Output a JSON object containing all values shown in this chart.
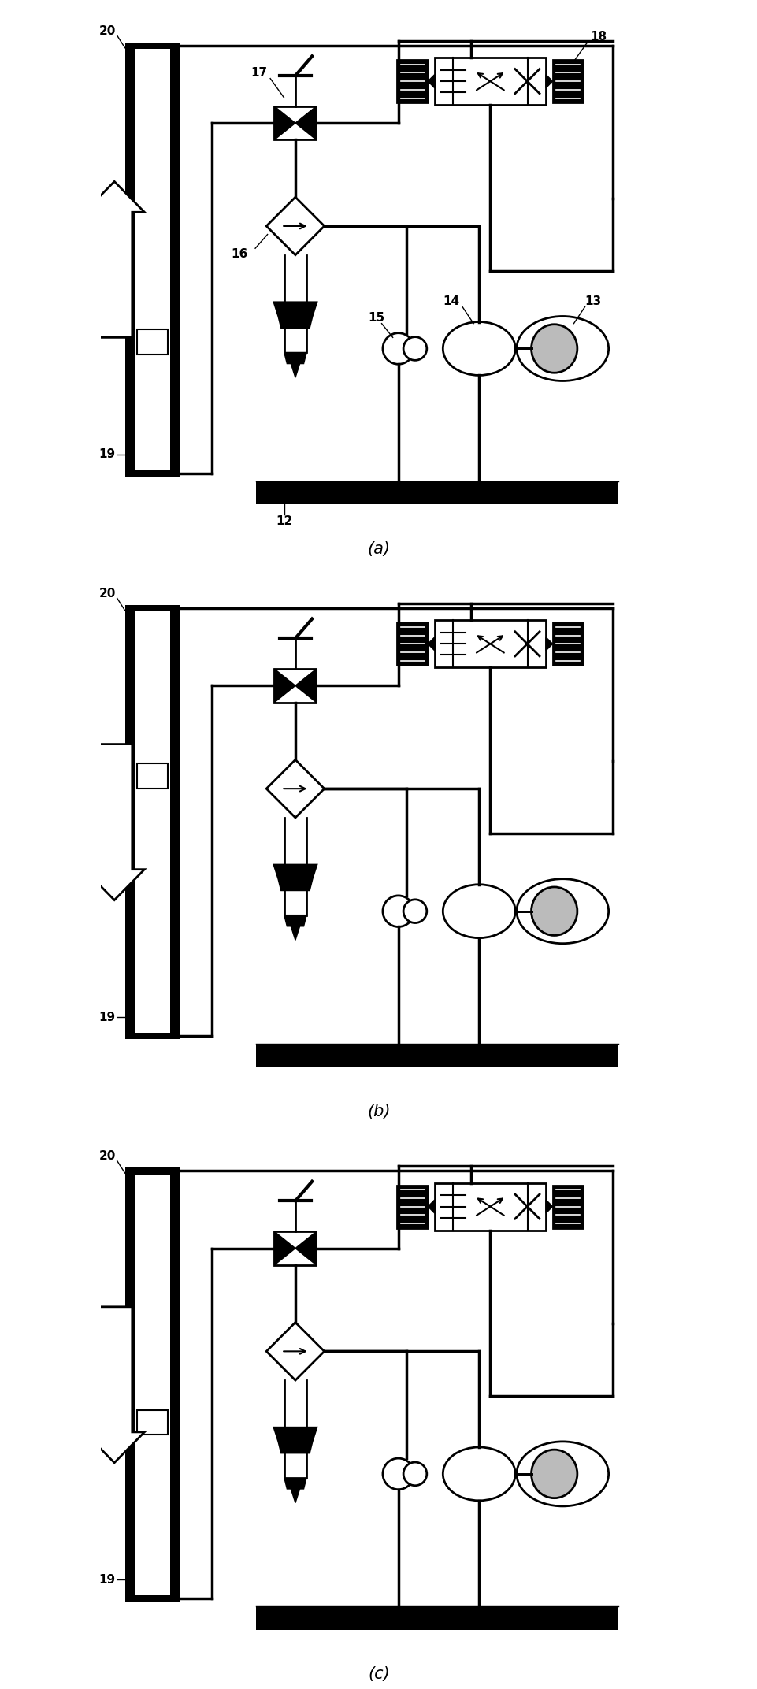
{
  "fig_width": 9.62,
  "fig_height": 21.44,
  "bg_color": "#ffffff",
  "panels": [
    "(a)",
    "(b)",
    "(c)"
  ],
  "lw_pipe": 2.5,
  "lw_component": 2.0,
  "black": "#000000"
}
